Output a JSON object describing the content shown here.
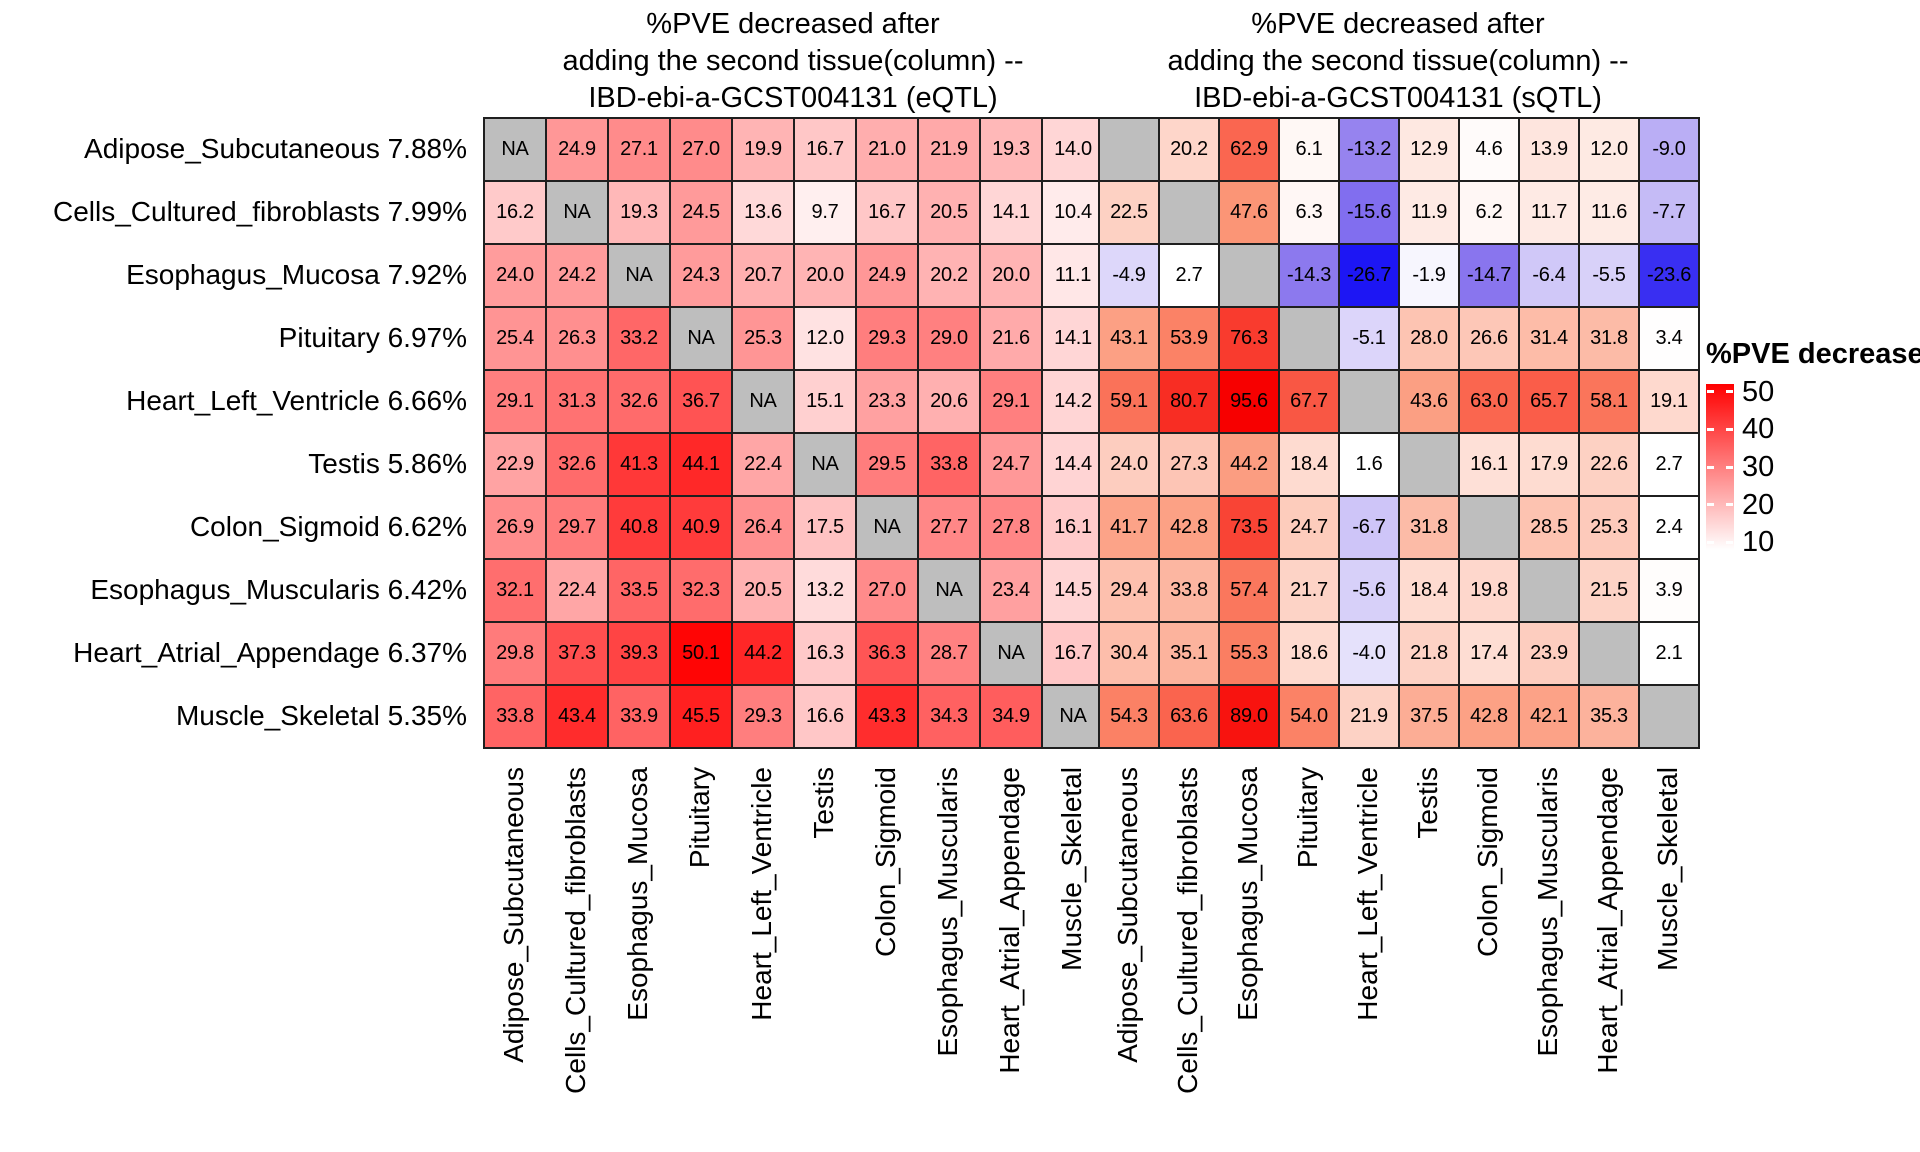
{
  "chart_data": {
    "type": "heatmap",
    "description_note": "Two diverging heatmaps of %PVE decrease; rows = first tissue, columns = second tissue added",
    "row_labels": [
      "Adipose_Subcutaneous 7.88%",
      "Cells_Cultured_fibroblasts 7.99%",
      "Esophagus_Mucosa 7.92%",
      "Pituitary 6.97%",
      "Heart_Left_Ventricle 6.66%",
      "Testis 5.86%",
      "Colon_Sigmoid 6.62%",
      "Esophagus_Muscularis 6.42%",
      "Heart_Atrial_Appendage 6.37%",
      "Muscle_Skeletal 5.35%"
    ],
    "col_labels": [
      "Adipose_Subcutaneous",
      "Cells_Cultured_fibroblasts",
      "Esophagus_Mucosa",
      "Pituitary",
      "Heart_Left_Ventricle",
      "Testis",
      "Colon_Sigmoid",
      "Esophagus_Muscularis",
      "Heart_Atrial_Appendage",
      "Muscle_Skeletal"
    ],
    "panels": [
      {
        "id": "eqtl",
        "title_lines": [
          "%PVE decreased after",
          "adding the second tissue(column) --",
          "IBD-ebi-a-GCST004131 (eQTL)"
        ],
        "na_label": "NA",
        "values": [
          [
            null,
            "24.9",
            "27.1",
            "27.0",
            "19.9",
            "16.7",
            "21.0",
            "21.9",
            "19.3",
            "14.0"
          ],
          [
            "16.2",
            null,
            "19.3",
            "24.5",
            "13.6",
            "9.7",
            "16.7",
            "20.5",
            "14.1",
            "10.4"
          ],
          [
            "24.0",
            "24.2",
            null,
            "24.3",
            "20.7",
            "20.0",
            "24.9",
            "20.2",
            "20.0",
            "11.1"
          ],
          [
            "25.4",
            "26.3",
            "33.2",
            null,
            "25.3",
            "12.0",
            "29.3",
            "29.0",
            "21.6",
            "14.1"
          ],
          [
            "29.1",
            "31.3",
            "32.6",
            "36.7",
            null,
            "15.1",
            "23.3",
            "20.6",
            "29.1",
            "14.2"
          ],
          [
            "22.9",
            "32.6",
            "41.3",
            "44.1",
            "22.4",
            null,
            "29.5",
            "33.8",
            "24.7",
            "14.4"
          ],
          [
            "26.9",
            "29.7",
            "40.8",
            "40.9",
            "26.4",
            "17.5",
            null,
            "27.7",
            "27.8",
            "16.1"
          ],
          [
            "32.1",
            "22.4",
            "33.5",
            "32.3",
            "20.5",
            "13.2",
            "27.0",
            null,
            "23.4",
            "14.5"
          ],
          [
            "29.8",
            "37.3",
            "39.3",
            "50.1",
            "44.2",
            "16.3",
            "36.3",
            "28.7",
            null,
            "16.7"
          ],
          [
            "33.8",
            "43.4",
            "33.9",
            "45.5",
            "29.3",
            "16.6",
            "43.3",
            "34.3",
            "34.9",
            null
          ]
        ],
        "color_mapping": {
          "na_color": "#BEBEBE",
          "positive": {
            "domain": [
              7,
              51
            ],
            "stops": [
              "#FFFFFF",
              "#FF0000"
            ]
          },
          "negative": {
            "domain": [
              1,
              27
            ],
            "stops": [
              "#FFFFFF",
              "#8F7BEE",
              "#1A14F4"
            ]
          }
        }
      },
      {
        "id": "sqtl",
        "title_lines": [
          "%PVE decreased after",
          "adding the second tissue(column) --",
          "IBD-ebi-a-GCST004131 (sQTL)"
        ],
        "na_label": "",
        "values": [
          [
            null,
            "20.2",
            "62.9",
            "6.1",
            "-13.2",
            "12.9",
            "4.6",
            "13.9",
            "12.0",
            "-9.0"
          ],
          [
            "22.5",
            null,
            "47.6",
            "6.3",
            "-15.6",
            "11.9",
            "6.2",
            "11.7",
            "11.6",
            "-7.7"
          ],
          [
            "-4.9",
            "2.7",
            null,
            "-14.3",
            "-26.7",
            "-1.9",
            "-14.7",
            "-6.4",
            "-5.5",
            "-23.6"
          ],
          [
            "43.1",
            "53.9",
            "76.3",
            null,
            "-5.1",
            "28.0",
            "26.6",
            "31.4",
            "31.8",
            "3.4"
          ],
          [
            "59.1",
            "80.7",
            "95.6",
            "67.7",
            null,
            "43.6",
            "63.0",
            "65.7",
            "58.1",
            "19.1"
          ],
          [
            "24.0",
            "27.3",
            "44.2",
            "18.4",
            "1.6",
            null,
            "16.1",
            "17.9",
            "22.6",
            "2.7"
          ],
          [
            "41.7",
            "42.8",
            "73.5",
            "24.7",
            "-6.7",
            "31.8",
            null,
            "28.5",
            "25.3",
            "2.4"
          ],
          [
            "29.4",
            "33.8",
            "57.4",
            "21.7",
            "-5.6",
            "18.4",
            "19.8",
            null,
            "21.5",
            "3.9"
          ],
          [
            "30.4",
            "35.1",
            "55.3",
            "18.6",
            "-4.0",
            "21.8",
            "17.4",
            "23.9",
            null,
            "2.1"
          ],
          [
            "54.3",
            "63.6",
            "89.0",
            "54.0",
            "21.9",
            "37.5",
            "42.8",
            "42.1",
            "35.3",
            null
          ]
        ],
        "color_mapping": {
          "na_color": "#BEBEBE",
          "positive": {
            "domain": [
              3,
              95
            ],
            "stops": [
              "#FFFFFF",
              "#FB9272",
              "#F70000"
            ]
          },
          "negative": {
            "domain": [
              1,
              27
            ],
            "stops": [
              "#FFFFFF",
              "#8F7BEE",
              "#1A14F4"
            ]
          }
        }
      }
    ],
    "legend": {
      "title": "%PVE decrease",
      "ticks": [
        "50",
        "40",
        "30",
        "20",
        "10"
      ],
      "domain": [
        52,
        8
      ],
      "gradient_stops": [
        "#FF0000",
        "#FFFFFF"
      ]
    }
  }
}
